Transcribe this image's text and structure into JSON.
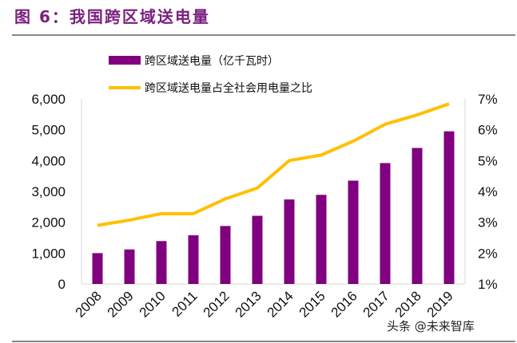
{
  "title": "图 6：我国跨区域送电量",
  "watermark": "头条 @未来智库",
  "colors": {
    "bar": "#800080",
    "line": "#FFC000",
    "title": "#7a1f7e"
  },
  "chart_data": {
    "type": "bar+line",
    "categories": [
      "2008",
      "2009",
      "2010",
      "2011",
      "2012",
      "2013",
      "2014",
      "2015",
      "2016",
      "2017",
      "2018",
      "2019"
    ],
    "series": [
      {
        "name": "跨区域送电量（亿千瓦时）",
        "type": "bar",
        "axis": "left",
        "values": [
          1000,
          1120,
          1390,
          1580,
          1880,
          2210,
          2740,
          2890,
          3350,
          3920,
          4410,
          4950
        ]
      },
      {
        "name": "跨区域送电量占全社会用电量之比",
        "type": "line",
        "axis": "right",
        "values": [
          2.9,
          3.07,
          3.28,
          3.28,
          3.76,
          4.11,
          5.0,
          5.18,
          5.63,
          6.18,
          6.48,
          6.84
        ]
      }
    ],
    "left_axis": {
      "ylim": [
        0,
        6000
      ],
      "ticks": [
        "0",
        "1,000",
        "2,000",
        "3,000",
        "4,000",
        "5,000",
        "6,000"
      ]
    },
    "right_axis": {
      "ylim": [
        1,
        7
      ],
      "ticks": [
        "1%",
        "2%",
        "3%",
        "4%",
        "5%",
        "6%",
        "7%"
      ]
    },
    "legend_position": "top",
    "grid": false
  }
}
